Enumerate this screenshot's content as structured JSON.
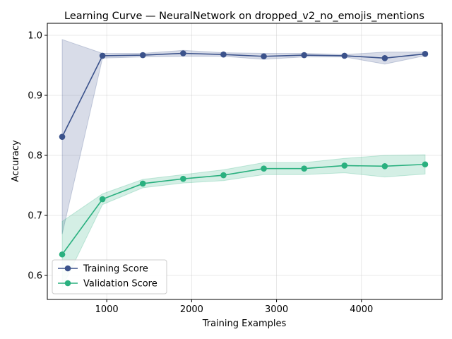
{
  "chart_data": {
    "type": "line",
    "title": "Learning Curve — NeuralNetwork on dropped_v2_no_emojis_mentions",
    "xlabel": "Training Examples",
    "ylabel": "Accuracy",
    "xlim": [
      300,
      4950
    ],
    "ylim": [
      0.56,
      1.02
    ],
    "xticks": [
      1000,
      2000,
      3000,
      4000
    ],
    "yticks": [
      0.6,
      0.7,
      0.8,
      0.9,
      1.0
    ],
    "xtick_labels": [
      "1000",
      "2000",
      "3000",
      "4000"
    ],
    "ytick_labels": [
      "0.6",
      "0.7",
      "0.8",
      "0.9",
      "1.0"
    ],
    "grid": true,
    "legend_position": "lower-left",
    "x": [
      475,
      950,
      1425,
      1900,
      2375,
      2850,
      3325,
      3800,
      4275,
      4750
    ],
    "series": [
      {
        "name": "Training Score",
        "color": "#3b528b",
        "values": [
          0.831,
          0.966,
          0.967,
          0.97,
          0.968,
          0.965,
          0.967,
          0.966,
          0.962,
          0.969
        ],
        "upper": [
          0.993,
          0.97,
          0.97,
          0.975,
          0.971,
          0.97,
          0.97,
          0.968,
          0.972,
          0.972
        ],
        "lower": [
          0.669,
          0.962,
          0.964,
          0.965,
          0.965,
          0.96,
          0.964,
          0.964,
          0.952,
          0.966
        ]
      },
      {
        "name": "Validation Score",
        "color": "#2ab07f",
        "values": [
          0.635,
          0.727,
          0.753,
          0.761,
          0.767,
          0.778,
          0.778,
          0.783,
          0.782,
          0.785
        ],
        "upper": [
          0.69,
          0.736,
          0.76,
          0.768,
          0.776,
          0.788,
          0.788,
          0.795,
          0.8,
          0.801
        ],
        "lower": [
          0.58,
          0.718,
          0.746,
          0.754,
          0.758,
          0.768,
          0.768,
          0.771,
          0.764,
          0.769
        ]
      }
    ]
  }
}
